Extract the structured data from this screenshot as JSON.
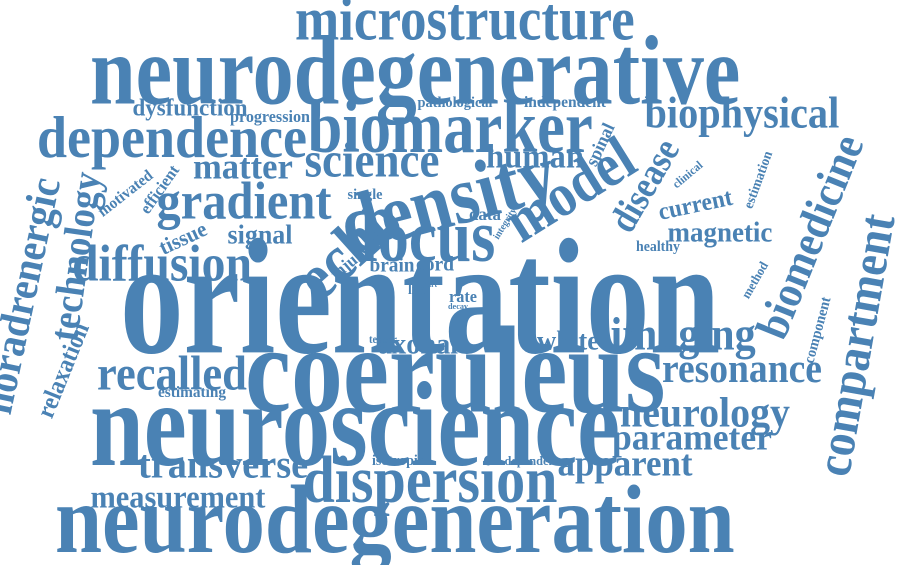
{
  "colors": {
    "word": "#4a82b4",
    "background": "#ffffff"
  },
  "words": [
    "orientation",
    "coeruleus",
    "neuroscience",
    "neurodegeneration",
    "neurodegenerative",
    "microstructure",
    "biomarker",
    "dependence",
    "density",
    "model",
    "disease",
    "biomedicine",
    "compartment",
    "locus",
    "diffusion",
    "gradient",
    "science",
    "biophysical",
    "echo",
    "noradrenergic",
    "technology",
    "relaxation",
    "dispersion",
    "imaging",
    "resonance",
    "recalled",
    "transverse",
    "measurement",
    "apparent",
    "neurology",
    "parameter",
    "magnetic",
    "signal",
    "white",
    "axonal",
    "human",
    "matter",
    "dysfunction",
    "current",
    "spinal",
    "tissue",
    "injury",
    "brain",
    "cord",
    "progression",
    "pathological",
    "independent",
    "motivated",
    "efficient",
    "single",
    "data",
    "integrity",
    "clinical",
    "estimation",
    "healthy",
    "method",
    "component",
    "life",
    "rate",
    "part",
    "decay",
    "tensor",
    "estimating",
    "isotropic",
    "dependent"
  ]
}
